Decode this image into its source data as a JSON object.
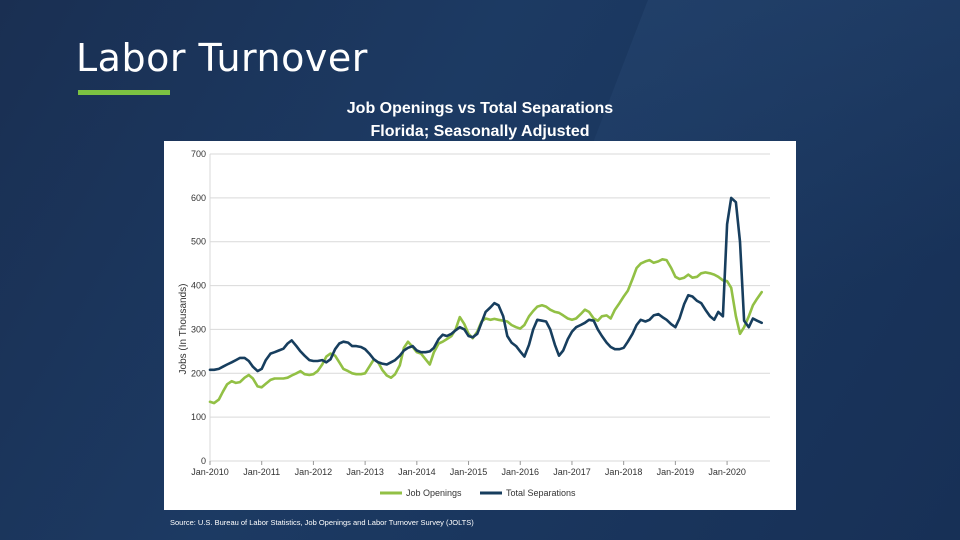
{
  "slide": {
    "title": "Labor Turnover",
    "source": "Source: U.S. Bureau of Labor Statistics, Job Openings and Labor Turnover Survey (JOLTS)"
  },
  "colors": {
    "accent": "#7cc242",
    "job_openings": "#92c045",
    "total_separations": "#173e5e",
    "grid": "#d9d9d9"
  },
  "chart_data": {
    "type": "line",
    "title": "Job Openings vs Total Separations",
    "subtitle": "Florida; Seasonally Adjusted",
    "xlabel": "",
    "ylabel": "Jobs (In Thousands)",
    "ylim": [
      0,
      700
    ],
    "yticks": [
      0,
      100,
      200,
      300,
      400,
      500,
      600,
      700
    ],
    "x_range": [
      2010.0,
      2020.83
    ],
    "x_ticks": [
      {
        "x": 2010,
        "label": "Jan-2010"
      },
      {
        "x": 2011,
        "label": "Jan-2011"
      },
      {
        "x": 2012,
        "label": "Jan-2012"
      },
      {
        "x": 2013,
        "label": "Jan-2013"
      },
      {
        "x": 2014,
        "label": "Jan-2014"
      },
      {
        "x": 2015,
        "label": "Jan-2015"
      },
      {
        "x": 2016,
        "label": "Jan-2016"
      },
      {
        "x": 2017,
        "label": "Jan-2017"
      },
      {
        "x": 2018,
        "label": "Jan-2018"
      },
      {
        "x": 2019,
        "label": "Jan-2019"
      },
      {
        "x": 2020,
        "label": "Jan-2020"
      }
    ],
    "grid": true,
    "legend_position": "bottom",
    "series": [
      {
        "name": "Job Openings",
        "color": "#92c045",
        "points": [
          [
            2010.0,
            135
          ],
          [
            2010.08,
            132
          ],
          [
            2010.17,
            140
          ],
          [
            2010.25,
            158
          ],
          [
            2010.33,
            175
          ],
          [
            2010.42,
            182
          ],
          [
            2010.5,
            178
          ],
          [
            2010.58,
            180
          ],
          [
            2010.67,
            190
          ],
          [
            2010.75,
            196
          ],
          [
            2010.83,
            188
          ],
          [
            2010.92,
            170
          ],
          [
            2011.0,
            168
          ],
          [
            2011.08,
            176
          ],
          [
            2011.17,
            185
          ],
          [
            2011.25,
            188
          ],
          [
            2011.33,
            188
          ],
          [
            2011.42,
            188
          ],
          [
            2011.5,
            190
          ],
          [
            2011.58,
            195
          ],
          [
            2011.67,
            200
          ],
          [
            2011.75,
            205
          ],
          [
            2011.83,
            198
          ],
          [
            2011.92,
            196
          ],
          [
            2012.0,
            198
          ],
          [
            2012.08,
            205
          ],
          [
            2012.17,
            220
          ],
          [
            2012.25,
            238
          ],
          [
            2012.33,
            245
          ],
          [
            2012.42,
            240
          ],
          [
            2012.5,
            225
          ],
          [
            2012.58,
            210
          ],
          [
            2012.67,
            205
          ],
          [
            2012.75,
            200
          ],
          [
            2012.83,
            198
          ],
          [
            2012.92,
            198
          ],
          [
            2013.0,
            200
          ],
          [
            2013.08,
            215
          ],
          [
            2013.17,
            232
          ],
          [
            2013.25,
            225
          ],
          [
            2013.33,
            208
          ],
          [
            2013.42,
            195
          ],
          [
            2013.5,
            190
          ],
          [
            2013.58,
            198
          ],
          [
            2013.67,
            218
          ],
          [
            2013.75,
            258
          ],
          [
            2013.83,
            272
          ],
          [
            2013.92,
            260
          ],
          [
            2014.0,
            248
          ],
          [
            2014.08,
            245
          ],
          [
            2014.17,
            232
          ],
          [
            2014.25,
            220
          ],
          [
            2014.33,
            248
          ],
          [
            2014.42,
            268
          ],
          [
            2014.5,
            272
          ],
          [
            2014.58,
            278
          ],
          [
            2014.67,
            285
          ],
          [
            2014.75,
            300
          ],
          [
            2014.83,
            328
          ],
          [
            2014.92,
            312
          ],
          [
            2015.0,
            290
          ],
          [
            2015.08,
            280
          ],
          [
            2015.17,
            295
          ],
          [
            2015.25,
            318
          ],
          [
            2015.33,
            325
          ],
          [
            2015.42,
            322
          ],
          [
            2015.5,
            324
          ],
          [
            2015.58,
            322
          ],
          [
            2015.67,
            320
          ],
          [
            2015.75,
            318
          ],
          [
            2015.83,
            310
          ],
          [
            2015.92,
            305
          ],
          [
            2016.0,
            302
          ],
          [
            2016.08,
            310
          ],
          [
            2016.17,
            330
          ],
          [
            2016.25,
            342
          ],
          [
            2016.33,
            352
          ],
          [
            2016.42,
            355
          ],
          [
            2016.5,
            352
          ],
          [
            2016.58,
            345
          ],
          [
            2016.67,
            340
          ],
          [
            2016.75,
            338
          ],
          [
            2016.83,
            332
          ],
          [
            2016.92,
            325
          ],
          [
            2017.0,
            322
          ],
          [
            2017.08,
            325
          ],
          [
            2017.17,
            335
          ],
          [
            2017.25,
            345
          ],
          [
            2017.33,
            340
          ],
          [
            2017.42,
            325
          ],
          [
            2017.5,
            320
          ],
          [
            2017.58,
            330
          ],
          [
            2017.67,
            332
          ],
          [
            2017.75,
            325
          ],
          [
            2017.83,
            345
          ],
          [
            2017.92,
            360
          ],
          [
            2018.0,
            375
          ],
          [
            2018.08,
            388
          ],
          [
            2018.17,
            415
          ],
          [
            2018.25,
            440
          ],
          [
            2018.33,
            450
          ],
          [
            2018.42,
            455
          ],
          [
            2018.5,
            458
          ],
          [
            2018.58,
            452
          ],
          [
            2018.67,
            455
          ],
          [
            2018.75,
            460
          ],
          [
            2018.83,
            458
          ],
          [
            2018.92,
            440
          ],
          [
            2019.0,
            420
          ],
          [
            2019.08,
            415
          ],
          [
            2019.17,
            418
          ],
          [
            2019.25,
            425
          ],
          [
            2019.33,
            418
          ],
          [
            2019.42,
            420
          ],
          [
            2019.5,
            428
          ],
          [
            2019.58,
            430
          ],
          [
            2019.67,
            428
          ],
          [
            2019.75,
            425
          ],
          [
            2019.83,
            420
          ],
          [
            2019.92,
            412
          ],
          [
            2020.0,
            410
          ],
          [
            2020.08,
            395
          ],
          [
            2020.17,
            330
          ],
          [
            2020.25,
            290
          ],
          [
            2020.33,
            305
          ],
          [
            2020.42,
            330
          ],
          [
            2020.5,
            355
          ],
          [
            2020.58,
            370
          ],
          [
            2020.67,
            385
          ]
        ]
      },
      {
        "name": "Total Separations",
        "color": "#173e5e",
        "points": [
          [
            2010.0,
            208
          ],
          [
            2010.08,
            208
          ],
          [
            2010.17,
            210
          ],
          [
            2010.25,
            215
          ],
          [
            2010.33,
            220
          ],
          [
            2010.42,
            225
          ],
          [
            2010.5,
            230
          ],
          [
            2010.58,
            235
          ],
          [
            2010.67,
            235
          ],
          [
            2010.75,
            228
          ],
          [
            2010.83,
            215
          ],
          [
            2010.92,
            205
          ],
          [
            2011.0,
            210
          ],
          [
            2011.08,
            230
          ],
          [
            2011.17,
            245
          ],
          [
            2011.25,
            248
          ],
          [
            2011.33,
            252
          ],
          [
            2011.42,
            256
          ],
          [
            2011.5,
            268
          ],
          [
            2011.58,
            275
          ],
          [
            2011.67,
            262
          ],
          [
            2011.75,
            250
          ],
          [
            2011.83,
            240
          ],
          [
            2011.92,
            230
          ],
          [
            2012.0,
            228
          ],
          [
            2012.08,
            228
          ],
          [
            2012.17,
            230
          ],
          [
            2012.25,
            225
          ],
          [
            2012.33,
            232
          ],
          [
            2012.42,
            255
          ],
          [
            2012.5,
            268
          ],
          [
            2012.58,
            272
          ],
          [
            2012.67,
            270
          ],
          [
            2012.75,
            262
          ],
          [
            2012.83,
            262
          ],
          [
            2012.92,
            260
          ],
          [
            2013.0,
            255
          ],
          [
            2013.08,
            245
          ],
          [
            2013.17,
            232
          ],
          [
            2013.25,
            225
          ],
          [
            2013.33,
            222
          ],
          [
            2013.42,
            220
          ],
          [
            2013.5,
            225
          ],
          [
            2013.58,
            230
          ],
          [
            2013.67,
            240
          ],
          [
            2013.75,
            252
          ],
          [
            2013.83,
            258
          ],
          [
            2013.92,
            262
          ],
          [
            2014.0,
            252
          ],
          [
            2014.08,
            248
          ],
          [
            2014.17,
            248
          ],
          [
            2014.25,
            250
          ],
          [
            2014.33,
            258
          ],
          [
            2014.42,
            278
          ],
          [
            2014.5,
            288
          ],
          [
            2014.58,
            285
          ],
          [
            2014.67,
            290
          ],
          [
            2014.75,
            298
          ],
          [
            2014.83,
            305
          ],
          [
            2014.92,
            300
          ],
          [
            2015.0,
            285
          ],
          [
            2015.08,
            282
          ],
          [
            2015.17,
            290
          ],
          [
            2015.25,
            315
          ],
          [
            2015.33,
            340
          ],
          [
            2015.42,
            350
          ],
          [
            2015.5,
            360
          ],
          [
            2015.58,
            355
          ],
          [
            2015.67,
            330
          ],
          [
            2015.75,
            285
          ],
          [
            2015.83,
            270
          ],
          [
            2015.92,
            262
          ],
          [
            2016.0,
            250
          ],
          [
            2016.08,
            238
          ],
          [
            2016.17,
            265
          ],
          [
            2016.25,
            300
          ],
          [
            2016.33,
            322
          ],
          [
            2016.42,
            320
          ],
          [
            2016.5,
            318
          ],
          [
            2016.58,
            300
          ],
          [
            2016.67,
            265
          ],
          [
            2016.75,
            240
          ],
          [
            2016.83,
            252
          ],
          [
            2016.92,
            278
          ],
          [
            2017.0,
            295
          ],
          [
            2017.08,
            305
          ],
          [
            2017.17,
            310
          ],
          [
            2017.25,
            315
          ],
          [
            2017.33,
            322
          ],
          [
            2017.42,
            320
          ],
          [
            2017.5,
            300
          ],
          [
            2017.58,
            285
          ],
          [
            2017.67,
            270
          ],
          [
            2017.75,
            260
          ],
          [
            2017.83,
            255
          ],
          [
            2017.92,
            255
          ],
          [
            2018.0,
            258
          ],
          [
            2018.08,
            272
          ],
          [
            2018.17,
            290
          ],
          [
            2018.25,
            310
          ],
          [
            2018.33,
            322
          ],
          [
            2018.42,
            318
          ],
          [
            2018.5,
            322
          ],
          [
            2018.58,
            332
          ],
          [
            2018.67,
            335
          ],
          [
            2018.75,
            328
          ],
          [
            2018.83,
            322
          ],
          [
            2018.92,
            312
          ],
          [
            2019.0,
            305
          ],
          [
            2019.08,
            325
          ],
          [
            2019.17,
            358
          ],
          [
            2019.25,
            378
          ],
          [
            2019.33,
            375
          ],
          [
            2019.42,
            365
          ],
          [
            2019.5,
            360
          ],
          [
            2019.58,
            345
          ],
          [
            2019.67,
            330
          ],
          [
            2019.75,
            322
          ],
          [
            2019.83,
            340
          ],
          [
            2019.92,
            330
          ],
          [
            2020.0,
            540
          ],
          [
            2020.08,
            600
          ],
          [
            2020.17,
            590
          ],
          [
            2020.25,
            500
          ],
          [
            2020.33,
            320
          ],
          [
            2020.42,
            305
          ],
          [
            2020.5,
            325
          ],
          [
            2020.58,
            320
          ],
          [
            2020.67,
            315
          ]
        ]
      }
    ]
  }
}
